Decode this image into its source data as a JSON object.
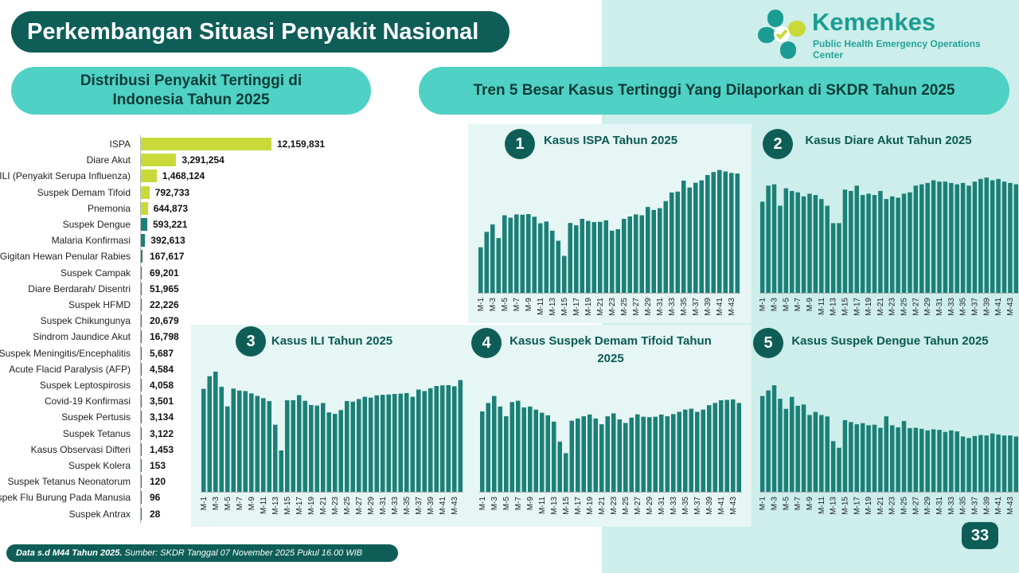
{
  "page": {
    "title": "Perkembangan Situasi Penyakit Nasional",
    "logo_name": "Kemenkes",
    "logo_subtitle": "Public Health Emergency Operations Center",
    "left_heading": "Distribusi Penyakit Tertinggi di Indonesia Tahun 2025",
    "right_heading": "Tren 5 Besar Kasus Tertinggi Yang Dilaporkan di SKDR Tahun 2025",
    "footer_bold": "Data s.d M44 Tahun 2025.",
    "footer_rest": " Sumber: SKDR Tanggal 07 November 2025 Pukul 16.00 WIB",
    "page_number": "33",
    "colors": {
      "dark_teal": "#0e5e57",
      "bar_teal": "#1b8077",
      "lime": "#c9d93a",
      "pill": "#4fd1c5",
      "panel_bg": "#e6f6f4"
    }
  },
  "chart_data": [
    {
      "type": "bar",
      "orientation": "horizontal",
      "title": "Distribusi Penyakit Tertinggi di Indonesia Tahun 2025",
      "categories": [
        "ISPA",
        "Diare Akut",
        "ILI (Penyakit Serupa Influenza)",
        "Suspek Demam Tifoid",
        "Pnemonia",
        "Suspek Dengue",
        "Malaria Konfirmasi",
        "Gigitan Hewan Penular Rabies",
        "Suspek Campak",
        "Diare Berdarah/ Disentri",
        "Suspek HFMD",
        "Suspek Chikungunya",
        "Sindrom Jaundice Akut",
        "Suspek Meningitis/Encephalitis",
        "Acute Flacid Paralysis (AFP)",
        "Suspek Leptospirosis",
        "Covid-19 Konfirmasi",
        "Suspek Pertusis",
        "Suspek Tetanus",
        "Kasus Observasi Difteri",
        "Suspek Kolera",
        "Suspek Tetanus Neonatorum",
        "Suspek Flu Burung Pada Manusia",
        "Suspek Antrax"
      ],
      "values": [
        12159831,
        3291254,
        1468124,
        792733,
        644873,
        593221,
        392613,
        167617,
        69201,
        51965,
        22226,
        20679,
        16798,
        5687,
        4584,
        4058,
        3501,
        3134,
        3122,
        1453,
        153,
        120,
        96,
        28
      ],
      "value_labels": [
        "12,159,831",
        "3,291,254",
        "1,468,124",
        "792,733",
        "644,873",
        "593,221",
        "392,613",
        "167,617",
        "69,201",
        "51,965",
        "22,226",
        "20,679",
        "16,798",
        "5,687",
        "4,584",
        "4,058",
        "3,501",
        "3,134",
        "3,122",
        "1,453",
        "153",
        "120",
        "96",
        "28"
      ],
      "bar_colors": [
        "#c9d93a",
        "#c9d93a",
        "#c9d93a",
        "#c9d93a",
        "#c9d93a",
        "#1b8077",
        "#1b8077",
        "#1b8077",
        "#1b8077",
        "#1b8077",
        "#1b8077",
        "#1b8077",
        "#1b8077",
        "#1b8077",
        "#1b8077",
        "#1b8077",
        "#1b8077",
        "#1b8077",
        "#1b8077",
        "#1b8077",
        "#1b8077",
        "#1b8077",
        "#1b8077",
        "#1b8077"
      ]
    },
    {
      "type": "bar",
      "number": "1",
      "title": "Kasus ISPA Tahun 2025",
      "categories": [
        "M-1",
        "M-2",
        "M-3",
        "M-4",
        "M-5",
        "M-6",
        "M-7",
        "M-8",
        "M-9",
        "M-10",
        "M-11",
        "M-12",
        "M-13",
        "M-14",
        "M-15",
        "M-16",
        "M-17",
        "M-18",
        "M-19",
        "M-20",
        "M-21",
        "M-22",
        "M-23",
        "M-24",
        "M-25",
        "M-26",
        "M-27",
        "M-28",
        "M-29",
        "M-30",
        "M-31",
        "M-32",
        "M-33",
        "M-34",
        "M-35",
        "M-36",
        "M-37",
        "M-38",
        "M-39",
        "M-40",
        "M-41",
        "M-42",
        "M-43",
        "M-44"
      ],
      "tick_labels": [
        "M-1",
        "M-3",
        "M-5",
        "M-7",
        "M-9",
        "M-11",
        "M-13",
        "M-15",
        "M-17",
        "M-19",
        "M-21",
        "M-23",
        "M-25",
        "M-27",
        "M-29",
        "M-31",
        "M-33",
        "M-35",
        "M-37",
        "M-39",
        "M-41",
        "M-43"
      ],
      "values": [
        154000,
        206000,
        231000,
        185000,
        262000,
        254000,
        265000,
        264000,
        266000,
        257000,
        235000,
        241000,
        210000,
        176000,
        125000,
        236000,
        228000,
        250000,
        243000,
        239000,
        240000,
        245000,
        210000,
        215000,
        250000,
        258000,
        265000,
        262000,
        290000,
        280000,
        286000,
        310000,
        339000,
        342000,
        379000,
        356000,
        372000,
        380000,
        398000,
        408000,
        415000,
        410000,
        405000,
        403000
      ],
      "ylim": [
        0,
        430000
      ]
    },
    {
      "type": "bar",
      "number": "2",
      "title": "Kasus Diare Akut Tahun 2025",
      "categories": [
        "M-1",
        "M-2",
        "M-3",
        "M-4",
        "M-5",
        "M-6",
        "M-7",
        "M-8",
        "M-9",
        "M-10",
        "M-11",
        "M-12",
        "M-13",
        "M-14",
        "M-15",
        "M-16",
        "M-17",
        "M-18",
        "M-19",
        "M-20",
        "M-21",
        "M-22",
        "M-23",
        "M-24",
        "M-25",
        "M-26",
        "M-27",
        "M-28",
        "M-29",
        "M-30",
        "M-31",
        "M-32",
        "M-33",
        "M-34",
        "M-35",
        "M-36",
        "M-37",
        "M-38",
        "M-39",
        "M-40",
        "M-41",
        "M-42",
        "M-43",
        "M-44"
      ],
      "tick_labels": [
        "M-1",
        "M-3",
        "M-5",
        "M-7",
        "M-9",
        "M-11",
        "M-13",
        "M-15",
        "M-17",
        "M-19",
        "M-21",
        "M-23",
        "M-25",
        "M-27",
        "M-29",
        "M-31",
        "M-33",
        "M-35",
        "M-37",
        "M-39",
        "M-41",
        "M-43"
      ],
      "values": [
        68000,
        80000,
        81000,
        65000,
        78000,
        76000,
        75000,
        72000,
        74000,
        73000,
        70000,
        65000,
        52000,
        52000,
        77000,
        76000,
        80000,
        73000,
        74000,
        73000,
        76000,
        70000,
        72000,
        71000,
        74000,
        75000,
        80000,
        81000,
        82000,
        84000,
        83000,
        83000,
        82000,
        81000,
        82000,
        80000,
        83000,
        85000,
        86000,
        84000,
        85000,
        83000,
        82000,
        81000
      ],
      "ylim": [
        0,
        95000
      ]
    },
    {
      "type": "bar",
      "number": "3",
      "title": "Kasus ILI Tahun 2025",
      "categories": [
        "M-1",
        "M-2",
        "M-3",
        "M-4",
        "M-5",
        "M-6",
        "M-7",
        "M-8",
        "M-9",
        "M-10",
        "M-11",
        "M-12",
        "M-13",
        "M-14",
        "M-15",
        "M-16",
        "M-17",
        "M-18",
        "M-19",
        "M-20",
        "M-21",
        "M-22",
        "M-23",
        "M-24",
        "M-25",
        "M-26",
        "M-27",
        "M-28",
        "M-29",
        "M-30",
        "M-31",
        "M-32",
        "M-33",
        "M-34",
        "M-35",
        "M-36",
        "M-37",
        "M-38",
        "M-39",
        "M-40",
        "M-41",
        "M-42",
        "M-43",
        "M-44"
      ],
      "tick_labels": [
        "M-1",
        "M-3",
        "M-5",
        "M-7",
        "M-9",
        "M-11",
        "M-13",
        "M-15",
        "M-17",
        "M-19",
        "M-21",
        "M-23",
        "M-25",
        "M-27",
        "M-29",
        "M-31",
        "M-33",
        "M-35",
        "M-37",
        "M-39",
        "M-41",
        "M-43"
      ],
      "values": [
        36300,
        40739,
        42364,
        37000,
        30100,
        36400,
        35700,
        35500,
        34700,
        33800,
        33000,
        31960,
        23652,
        14600,
        32300,
        32300,
        34077,
        32077,
        30600,
        30400,
        31309,
        28000,
        27500,
        28800,
        32000,
        31800,
        32700,
        33500,
        33200,
        34000,
        34200,
        34300,
        34500,
        34600,
        34800,
        33500,
        36032,
        35500,
        36500,
        37300,
        37500,
        37600,
        37200,
        39392
      ],
      "ylim": [
        0,
        46000
      ]
    },
    {
      "type": "bar",
      "number": "4",
      "title": "Kasus Suspek Demam Tifoid Tahun 2025",
      "categories": [
        "M-1",
        "M-2",
        "M-3",
        "M-4",
        "M-5",
        "M-6",
        "M-7",
        "M-8",
        "M-9",
        "M-10",
        "M-11",
        "M-12",
        "M-13",
        "M-14",
        "M-15",
        "M-16",
        "M-17",
        "M-18",
        "M-19",
        "M-20",
        "M-21",
        "M-22",
        "M-23",
        "M-24",
        "M-25",
        "M-26",
        "M-27",
        "M-28",
        "M-29",
        "M-30",
        "M-31",
        "M-32",
        "M-33",
        "M-34",
        "M-35",
        "M-36",
        "M-37",
        "M-38",
        "M-39",
        "M-40",
        "M-41",
        "M-42",
        "M-43",
        "M-44"
      ],
      "tick_labels": [
        "M-1",
        "M-3",
        "M-5",
        "M-7",
        "M-9",
        "M-11",
        "M-13",
        "M-15",
        "M-17",
        "M-19",
        "M-21",
        "M-23",
        "M-25",
        "M-27",
        "M-29",
        "M-31",
        "M-33",
        "M-35",
        "M-37",
        "M-39",
        "M-41",
        "M-43"
      ],
      "values": [
        18100,
        20000,
        21564,
        19200,
        17000,
        20200,
        20500,
        19000,
        19200,
        18500,
        17800,
        17229,
        15800,
        11285,
        8700,
        16000,
        16500,
        17000,
        17400,
        16500,
        15200,
        17000,
        17660,
        16300,
        15500,
        16700,
        17443,
        16900,
        16800,
        16900,
        17400,
        17000,
        17500,
        18000,
        18500,
        18700,
        18000,
        18500,
        19500,
        20000,
        20600,
        20700,
        20800,
        20000
      ],
      "ylim": [
        0,
        24000
      ]
    },
    {
      "type": "bar",
      "number": "5",
      "title": "Kasus Suspek Dengue Tahun 2025",
      "categories": [
        "M-1",
        "M-2",
        "M-3",
        "M-4",
        "M-5",
        "M-6",
        "M-7",
        "M-8",
        "M-9",
        "M-10",
        "M-11",
        "M-12",
        "M-13",
        "M-14",
        "M-15",
        "M-16",
        "M-17",
        "M-18",
        "M-19",
        "M-20",
        "M-21",
        "M-22",
        "M-23",
        "M-24",
        "M-25",
        "M-26",
        "M-27",
        "M-28",
        "M-29",
        "M-30",
        "M-31",
        "M-32",
        "M-33",
        "M-34",
        "M-35",
        "M-36",
        "M-37",
        "M-38",
        "M-39",
        "M-40",
        "M-41",
        "M-42",
        "M-43",
        "M-44"
      ],
      "tick_labels": [
        "M-1",
        "M-3",
        "M-5",
        "M-7",
        "M-9",
        "M-11",
        "M-13",
        "M-15",
        "M-17",
        "M-19",
        "M-21",
        "M-23",
        "M-25",
        "M-27",
        "M-29",
        "M-31",
        "M-33",
        "M-35",
        "M-37",
        "M-39",
        "M-41",
        "M-43"
      ],
      "values": [
        18700,
        19800,
        20806,
        18182,
        16200,
        18538,
        16800,
        17049,
        15000,
        15600,
        15000,
        14716,
        9901,
        8600,
        14000,
        13622,
        13200,
        13400,
        13000,
        13100,
        12500,
        14736,
        13000,
        12600,
        13828,
        12447,
        12500,
        12300,
        12000,
        12200,
        12100,
        11700,
        12000,
        11802,
        10800,
        10500,
        10900,
        11100,
        11000,
        11400,
        11200,
        11000,
        11011,
        10800
      ],
      "ylim": [
        0,
        23000
      ]
    }
  ]
}
